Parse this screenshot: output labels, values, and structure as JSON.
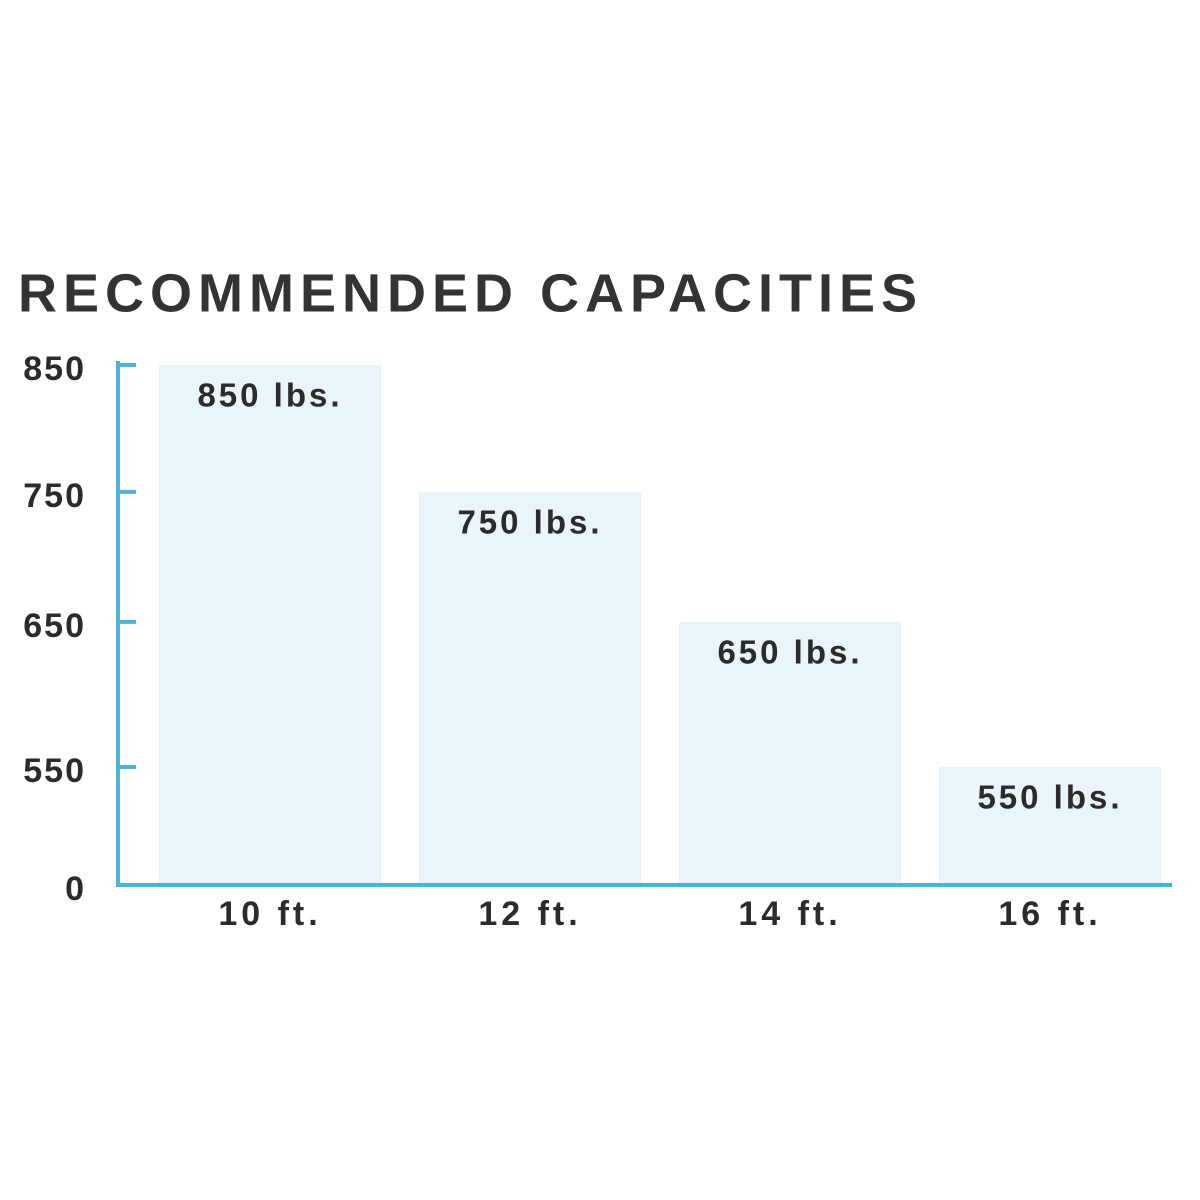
{
  "chart_data": {
    "type": "bar",
    "title": "RECOMMENDED CAPACITIES",
    "categories": [
      "10 ft.",
      "12 ft.",
      "14 ft.",
      "16 ft."
    ],
    "values": [
      850,
      750,
      650,
      550
    ],
    "value_labels": [
      "850 lbs.",
      "750 lbs.",
      "650 lbs.",
      "550 lbs."
    ],
    "color": "#eaf4fb",
    "axis_color": "#4ab3dc",
    "ylim": [
      0,
      850
    ],
    "yticks": [
      0,
      550,
      650,
      750,
      850
    ]
  }
}
